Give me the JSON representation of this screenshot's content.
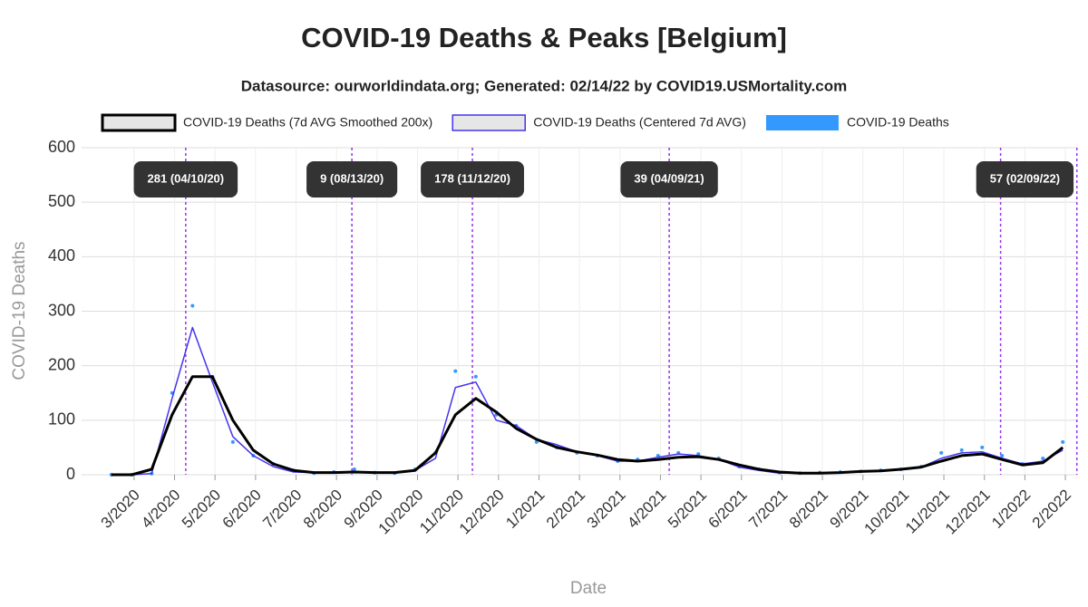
{
  "chart_data": {
    "type": "line",
    "title": "COVID-19 Deaths & Peaks [Belgium]",
    "subtitle": "Datasource: ourworldindata.org; Generated: 02/14/22 by COVID19.USMortality.com",
    "x_label": "Date",
    "y_label": "COVID-19 Deaths",
    "x": [
      2020.12,
      2020.162,
      2020.203,
      2020.245,
      2020.287,
      2020.328,
      2020.37,
      2020.412,
      2020.453,
      2020.495,
      2020.537,
      2020.578,
      2020.62,
      2020.662,
      2020.703,
      2020.745,
      2020.787,
      2020.828,
      2020.87,
      2020.912,
      2020.953,
      2020.995,
      2021.037,
      2021.078,
      2021.12,
      2021.162,
      2021.203,
      2021.245,
      2021.287,
      2021.328,
      2021.37,
      2021.412,
      2021.453,
      2021.495,
      2021.537,
      2021.578,
      2021.62,
      2021.662,
      2021.703,
      2021.745,
      2021.787,
      2021.828,
      2021.87,
      2021.912,
      2021.953,
      2021.995,
      2022.037,
      2022.078
    ],
    "series": [
      {
        "name": "COVID-19 Deaths (7d AVG Smoothed 200x)",
        "type": "line",
        "color": "#000000",
        "values": [
          0,
          0,
          10,
          110,
          180,
          180,
          100,
          45,
          20,
          8,
          4,
          4,
          5,
          4,
          4,
          8,
          40,
          110,
          140,
          115,
          85,
          65,
          50,
          42,
          36,
          28,
          25,
          28,
          32,
          33,
          28,
          18,
          10,
          5,
          3,
          3,
          4,
          6,
          7,
          10,
          14,
          25,
          35,
          38,
          28,
          18,
          22,
          50
        ]
      },
      {
        "name": "COVID-19 Deaths (Centered 7d AVG)",
        "type": "line",
        "color": "#4433ee",
        "values": [
          0,
          0,
          2,
          140,
          270,
          170,
          70,
          35,
          15,
          5,
          4,
          4,
          6,
          4,
          4,
          8,
          30,
          160,
          170,
          100,
          90,
          65,
          55,
          42,
          35,
          25,
          25,
          32,
          38,
          35,
          28,
          14,
          8,
          3,
          3,
          3,
          4,
          6,
          7,
          10,
          14,
          30,
          40,
          42,
          30,
          20,
          25,
          45
        ]
      },
      {
        "name": "COVID-19 Deaths",
        "type": "scatter",
        "color": "#3399ff",
        "values": [
          0,
          0,
          2,
          150,
          310,
          180,
          60,
          35,
          20,
          8,
          3,
          5,
          10,
          4,
          3,
          10,
          40,
          190,
          180,
          110,
          90,
          60,
          50,
          40,
          35,
          25,
          28,
          35,
          40,
          38,
          30,
          15,
          10,
          4,
          3,
          4,
          5,
          6,
          8,
          10,
          15,
          40,
          45,
          50,
          35,
          20,
          30,
          60
        ]
      }
    ],
    "xlim": [
      2020.0867,
      2022.1075
    ],
    "xticks": [
      {
        "value": 2020.1667,
        "label": "3/2020"
      },
      {
        "value": 2020.25,
        "label": "4/2020"
      },
      {
        "value": 2020.3333,
        "label": "5/2020"
      },
      {
        "value": 2020.4167,
        "label": "6/2020"
      },
      {
        "value": 2020.5,
        "label": "7/2020"
      },
      {
        "value": 2020.5833,
        "label": "8/2020"
      },
      {
        "value": 2020.6667,
        "label": "9/2020"
      },
      {
        "value": 2020.75,
        "label": "10/2020"
      },
      {
        "value": 2020.8333,
        "label": "11/2020"
      },
      {
        "value": 2020.9167,
        "label": "12/2020"
      },
      {
        "value": 2021.0,
        "label": "1/2021"
      },
      {
        "value": 2021.0833,
        "label": "2/2021"
      },
      {
        "value": 2021.1667,
        "label": "3/2021"
      },
      {
        "value": 2021.25,
        "label": "4/2021"
      },
      {
        "value": 2021.3333,
        "label": "5/2021"
      },
      {
        "value": 2021.4167,
        "label": "6/2021"
      },
      {
        "value": 2021.5,
        "label": "7/2021"
      },
      {
        "value": 2021.5833,
        "label": "8/2021"
      },
      {
        "value": 2021.6667,
        "label": "9/2021"
      },
      {
        "value": 2021.75,
        "label": "10/2021"
      },
      {
        "value": 2021.8333,
        "label": "11/2021"
      },
      {
        "value": 2021.9167,
        "label": "12/2021"
      },
      {
        "value": 2022.0,
        "label": "1/2022"
      },
      {
        "value": 2022.0833,
        "label": "2/2022"
      }
    ],
    "ylim": [
      0,
      600
    ],
    "yticks": [
      0,
      100,
      200,
      300,
      400,
      500,
      600
    ],
    "grid": true,
    "peak_lines": [
      2020.273,
      2020.615,
      2020.863,
      2021.268,
      2021.95,
      2022.107
    ],
    "peak_line_color": "#9933ee",
    "annotations": [
      {
        "x": 2020.273,
        "label": "281 (04/10/20)"
      },
      {
        "x": 2020.615,
        "label": "9 (08/13/20)"
      },
      {
        "x": 2020.863,
        "label": "178 (11/12/20)"
      },
      {
        "x": 2021.268,
        "label": "39 (04/09/21)"
      },
      {
        "x": 2022.0,
        "label": "57 (02/09/22)"
      }
    ]
  }
}
